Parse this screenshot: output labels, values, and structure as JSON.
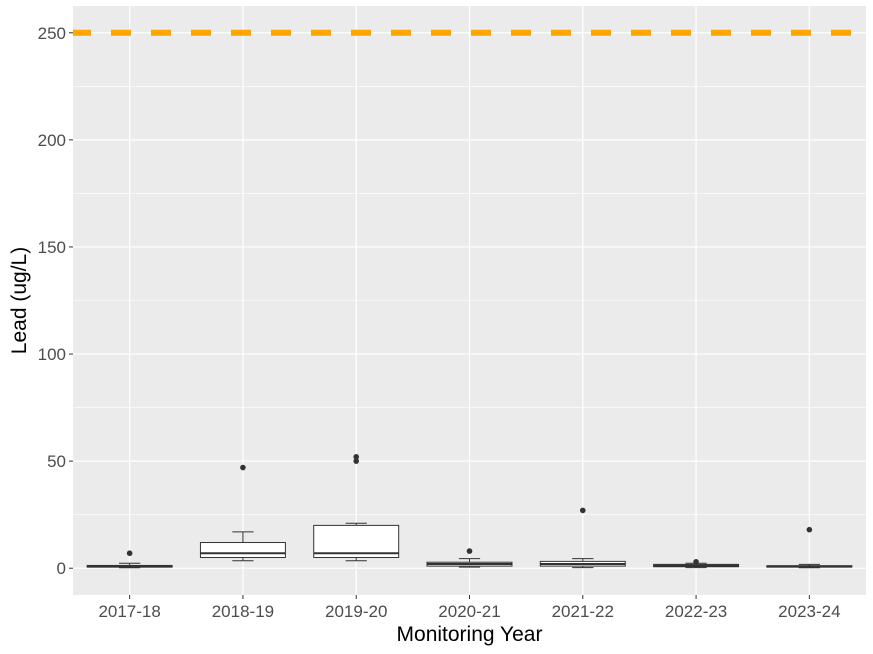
{
  "chart_data": {
    "type": "box",
    "xlabel": "Monitoring Year",
    "ylabel": "Lead (ug/L)",
    "ylim": [
      -12.5,
      262.5
    ],
    "yticks": [
      0,
      50,
      100,
      150,
      200,
      250
    ],
    "grid": true,
    "categories": [
      "2017-18",
      "2018-19",
      "2019-20",
      "2020-21",
      "2021-22",
      "2022-23",
      "2023-24"
    ],
    "boxes": [
      {
        "category": "2017-18",
        "min": 0.2,
        "q1": 0.5,
        "median": 0.8,
        "q3": 1.3,
        "max": 2.3,
        "outliers": [
          7
        ]
      },
      {
        "category": "2018-19",
        "min": 3.5,
        "q1": 5,
        "median": 7,
        "q3": 12,
        "max": 17,
        "outliers": [
          47
        ]
      },
      {
        "category": "2019-20",
        "min": 3.5,
        "q1": 5,
        "median": 7,
        "q3": 20,
        "max": 21,
        "outliers": [
          50,
          52
        ]
      },
      {
        "category": "2020-21",
        "min": 0.5,
        "q1": 1,
        "median": 2,
        "q3": 2.8,
        "max": 4.5,
        "outliers": [
          8
        ]
      },
      {
        "category": "2021-22",
        "min": 0.3,
        "q1": 1,
        "median": 2,
        "q3": 3.2,
        "max": 4.5,
        "outliers": [
          27
        ]
      },
      {
        "category": "2022-23",
        "min": 0.3,
        "q1": 0.7,
        "median": 1.2,
        "q3": 1.8,
        "max": 2.3,
        "outliers": [
          3
        ]
      },
      {
        "category": "2023-24",
        "min": 0.2,
        "q1": 0.5,
        "median": 0.8,
        "q3": 1.2,
        "max": 1.8,
        "outliers": [
          18
        ]
      }
    ],
    "reference_line": {
      "y": 250,
      "color": "#FFA500",
      "style": "dashed"
    },
    "colors": {
      "panel": "#EBEBEB",
      "grid": "#FFFFFF",
      "box_fill": "#FFFFFF",
      "box_stroke": "#333333"
    }
  }
}
